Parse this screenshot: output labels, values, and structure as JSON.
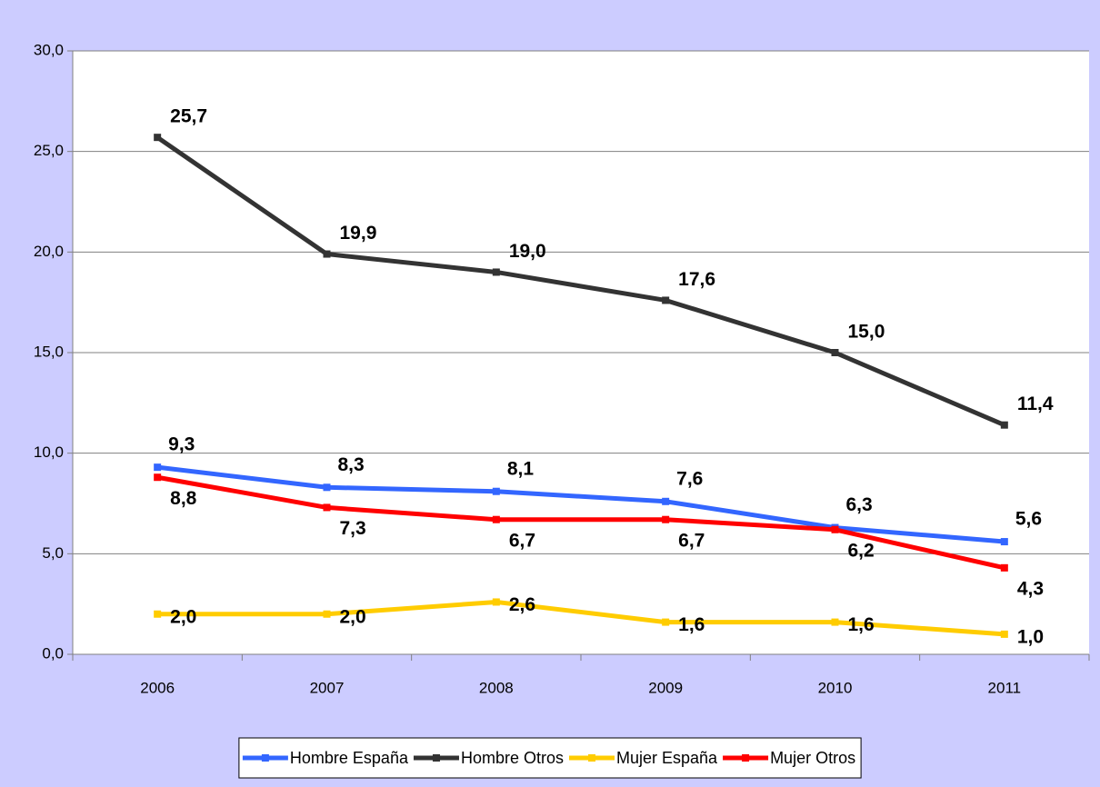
{
  "chart_data": {
    "type": "line",
    "categories": [
      "2006",
      "2007",
      "2008",
      "2009",
      "2010",
      "2011"
    ],
    "series": [
      {
        "name": "Hombre España",
        "color": "#3366ff",
        "values": [
          9.3,
          8.3,
          8.1,
          7.6,
          6.3,
          5.6
        ],
        "value_labels": [
          "9,3",
          "8,3",
          "8,1",
          "7,6",
          "6,3",
          "5,6"
        ]
      },
      {
        "name": "Hombre Otros",
        "color": "#333333",
        "values": [
          25.7,
          19.9,
          19.0,
          17.6,
          15.0,
          11.4
        ],
        "value_labels": [
          "25,7",
          "19,9",
          "19,0",
          "17,6",
          "15,0",
          "11,4"
        ]
      },
      {
        "name": "Mujer España",
        "color": "#ffcc00",
        "values": [
          2.0,
          2.0,
          2.6,
          1.6,
          1.6,
          1.0
        ],
        "value_labels": [
          "2,0",
          "2,0",
          "2,6",
          "1,6",
          "1,6",
          "1,0"
        ]
      },
      {
        "name": "Mujer Otros",
        "color": "#ff0000",
        "values": [
          8.8,
          7.3,
          6.7,
          6.7,
          6.2,
          4.3
        ],
        "value_labels": [
          "8,8",
          "7,3",
          "6,7",
          "6,7",
          "6,2",
          "4,3"
        ]
      }
    ],
    "ylim": [
      0,
      30
    ],
    "yticks": [
      {
        "value": 0,
        "label": "0,0"
      },
      {
        "value": 5,
        "label": "5,0"
      },
      {
        "value": 10,
        "label": "10,0"
      },
      {
        "value": 15,
        "label": "15,0"
      },
      {
        "value": 20,
        "label": "20,0"
      },
      {
        "value": 25,
        "label": "25,0"
      },
      {
        "value": 30,
        "label": "30,0"
      }
    ],
    "grid": true,
    "legend": "bottom"
  }
}
